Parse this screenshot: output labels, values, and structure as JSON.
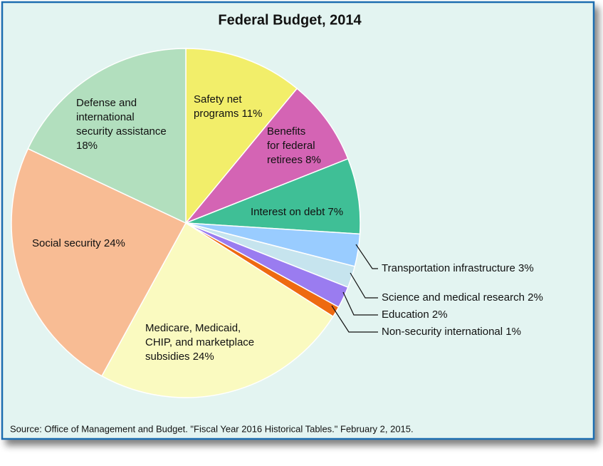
{
  "chart_data": {
    "type": "pie",
    "title": "Federal Budget, 2014",
    "values": [
      11,
      8,
      7,
      3,
      2,
      2,
      1,
      24,
      24,
      18
    ],
    "value_labels": [
      "Safety net\nprograms 11%",
      "Benefits\nfor federal\nretirees 8%",
      "Interest on debt 7%",
      "Transportation infrastructure 3%",
      "Science and medical research 2%",
      "Education 2%",
      "Non-security international 1%",
      "Medicare, Medicaid,\nCHIP, and marketplace\nsubsidies 24%",
      "Social security 24%",
      "Defense and\ninternational\nsecurity assistance\n18%"
    ],
    "colors": [
      "#f2ee6a",
      "#d464b4",
      "#3fbf96",
      "#99ccff",
      "#c6e4ee",
      "#9a7cf0",
      "#ee6a11",
      "#fafac0",
      "#f8bc94",
      "#b2dfbe"
    ],
    "source": "Source: Office of Management and Budget. \"Fiscal Year 2016 Historical Tables.\" February 2, 2015."
  }
}
